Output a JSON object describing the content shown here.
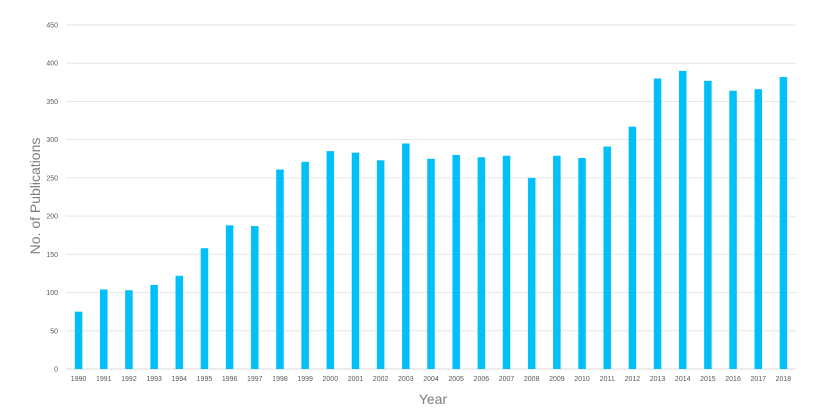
{
  "chart_data": {
    "type": "bar",
    "categories": [
      "1990",
      "1991",
      "1992",
      "1993",
      "1994",
      "1995",
      "1996",
      "1997",
      "1998",
      "1999",
      "2000",
      "2001",
      "2002",
      "2003",
      "2004",
      "2005",
      "2006",
      "2007",
      "2008",
      "2009",
      "2010",
      "2011",
      "2012",
      "2013",
      "2014",
      "2015",
      "2016",
      "2017",
      "2018"
    ],
    "values": [
      75,
      104,
      103,
      110,
      122,
      158,
      188,
      187,
      261,
      271,
      285,
      283,
      273,
      295,
      275,
      280,
      277,
      279,
      250,
      279,
      276,
      291,
      317,
      380,
      390,
      377,
      364,
      366,
      382
    ],
    "title": "",
    "xlabel": "Year",
    "ylabel": "No. of Publications",
    "ylim": [
      0,
      450
    ],
    "yticks": [
      0,
      50,
      100,
      150,
      200,
      250,
      300,
      350,
      400,
      450
    ],
    "grid": true,
    "bar_color": "#00c0f7"
  }
}
